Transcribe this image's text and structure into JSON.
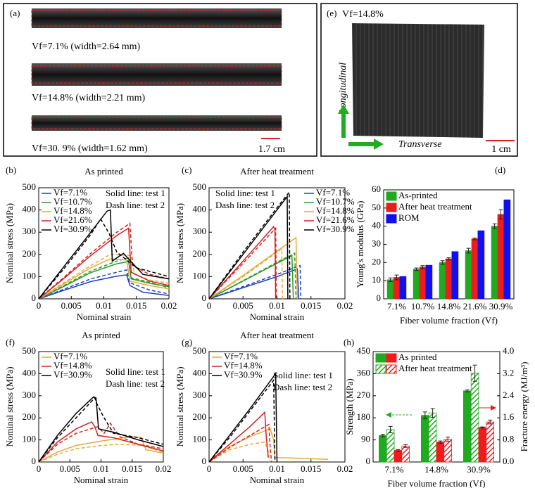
{
  "figure_panels": {
    "a": {
      "label": "(a)",
      "captions": [
        "Vf=7.1% (width=2.64 mm)",
        "Vf=14.8% (width=2.21 mm)",
        "Vf=30. 9% (width=1.62 mm)"
      ],
      "scale_bar": "1.7 cm"
    },
    "e": {
      "label": "(e)",
      "caption": "Vf=14.8%",
      "longitudinal": "Longitudinal",
      "transverse": "Transverse",
      "scale_bar": "1 cm"
    }
  },
  "chart_data": [
    {
      "type": "line",
      "panel": "(b)",
      "title": "As printed",
      "xlabel": "Nominal strain",
      "ylabel": "Nominal stress (MPa)",
      "xlim": [
        0,
        0.02
      ],
      "ylim": [
        0,
        500
      ],
      "xticks": [
        0,
        0.005,
        0.01,
        0.015,
        0.02
      ],
      "yticks": [
        0,
        100,
        200,
        300,
        400,
        500
      ],
      "legend": "upper left",
      "annotations": [
        "Solid line: test 1",
        "Dash line: test 2"
      ],
      "series": [
        {
          "name": "Vf=7.1%",
          "color": "#1a3fbf",
          "x": [
            0,
            0.004,
            0.008,
            0.012,
            0.0135,
            0.014,
            0.016,
            0.02
          ],
          "values": [
            0,
            40,
            78,
            102,
            108,
            60,
            30,
            15
          ]
        },
        {
          "color": "#1a3fbf",
          "dash": true,
          "x": [
            0,
            0.004,
            0.008,
            0.012,
            0.0135,
            0.014,
            0.017,
            0.02
          ],
          "values": [
            0,
            45,
            90,
            120,
            130,
            72,
            40,
            22
          ]
        },
        {
          "name": "Vf=10.7%",
          "color": "#2a9a2a",
          "x": [
            0,
            0.004,
            0.008,
            0.012,
            0.0138,
            0.0142,
            0.017,
            0.02
          ],
          "values": [
            0,
            58,
            118,
            158,
            168,
            90,
            70,
            55
          ]
        },
        {
          "color": "#2a9a2a",
          "dash": true,
          "x": [
            0,
            0.004,
            0.008,
            0.012,
            0.0138,
            0.0142,
            0.017,
            0.02
          ],
          "values": [
            0,
            62,
            125,
            170,
            185,
            95,
            75,
            50
          ]
        },
        {
          "name": "Vf=14.8%",
          "color": "#e8a93a",
          "x": [
            0,
            0.004,
            0.008,
            0.011,
            0.0135,
            0.014,
            0.017,
            0.02
          ],
          "values": [
            0,
            70,
            140,
            180,
            175,
            80,
            60,
            45
          ]
        },
        {
          "color": "#e8a93a",
          "dash": true,
          "x": [
            0,
            0.004,
            0.008,
            0.011,
            0.0143,
            0.0147,
            0.017,
            0.02
          ],
          "values": [
            0,
            75,
            150,
            200,
            195,
            110,
            85,
            70
          ]
        },
        {
          "name": "Vf=21.6%",
          "color": "#d42020",
          "x": [
            0,
            0.004,
            0.008,
            0.012,
            0.0138,
            0.0142,
            0.017,
            0.02
          ],
          "values": [
            0,
            95,
            195,
            285,
            318,
            120,
            80,
            60
          ]
        },
        {
          "color": "#d42020",
          "dash": true,
          "x": [
            0,
            0.004,
            0.008,
            0.012,
            0.014,
            0.0144,
            0.017,
            0.02
          ],
          "values": [
            0,
            100,
            205,
            300,
            340,
            150,
            110,
            90
          ]
        },
        {
          "name": "Vf=30.9%",
          "color": "#000000",
          "x": [
            0,
            0.004,
            0.008,
            0.0105,
            0.011,
            0.0113,
            0.013,
            0.016,
            0.02
          ],
          "values": [
            0,
            150,
            300,
            395,
            400,
            170,
            205,
            110,
            90
          ]
        },
        {
          "color": "#000000",
          "dash": true,
          "x": [
            0,
            0.004,
            0.008,
            0.0095,
            0.0108,
            0.012,
            0.015,
            0.02
          ],
          "values": [
            0,
            140,
            290,
            360,
            295,
            210,
            140,
            100
          ]
        }
      ]
    },
    {
      "type": "line",
      "panel": "(c)",
      "title": "After heat treatment",
      "xlabel": "Nominal strain",
      "ylabel": "Nominal stress (MPa)",
      "xlim": [
        0,
        0.02
      ],
      "ylim": [
        0,
        500
      ],
      "xticks": [
        0,
        0.005,
        0.01,
        0.015,
        0.02
      ],
      "yticks": [
        0,
        100,
        200,
        300,
        400,
        500
      ],
      "legend": "upper right",
      "annotations": [
        "Solid line: test 1",
        "Dash line: test 2"
      ],
      "series": [
        {
          "name": "Vf=7.1%",
          "color": "#1a3fbf",
          "x": [
            0,
            0.005,
            0.01,
            0.013,
            0.0132
          ],
          "values": [
            0,
            50,
            100,
            135,
            0
          ]
        },
        {
          "color": "#1a3fbf",
          "dash": true,
          "x": [
            0,
            0.005,
            0.01,
            0.0134,
            0.0135
          ],
          "values": [
            0,
            55,
            110,
            150,
            0
          ]
        },
        {
          "name": "Vf=10.7%",
          "color": "#2a9a2a",
          "x": [
            0,
            0.005,
            0.01,
            0.0122,
            0.0124
          ],
          "values": [
            0,
            80,
            160,
            195,
            0
          ]
        },
        {
          "color": "#2a9a2a",
          "dash": true,
          "x": [
            0,
            0.005,
            0.01,
            0.0126,
            0.0128
          ],
          "values": [
            0,
            82,
            165,
            205,
            0
          ]
        },
        {
          "name": "Vf=14.8%",
          "color": "#e8a93a",
          "x": [
            0,
            0.005,
            0.01,
            0.0128,
            0.013
          ],
          "values": [
            0,
            105,
            215,
            275,
            0
          ]
        },
        {
          "color": "#e8a93a",
          "dash": true,
          "x": [
            0,
            0.005,
            0.0107,
            0.0108
          ],
          "values": [
            0,
            100,
            225,
            0
          ]
        },
        {
          "name": "Vf=21.6%",
          "color": "#d42020",
          "x": [
            0,
            0.005,
            0.0095,
            0.0097,
            0.0098
          ],
          "values": [
            0,
            170,
            325,
            310,
            0
          ]
        },
        {
          "color": "#d42020",
          "dash": true,
          "x": [
            0,
            0.005,
            0.0098,
            0.0099
          ],
          "values": [
            0,
            160,
            318,
            0
          ]
        },
        {
          "name": "Vf=30.9%",
          "color": "#000000",
          "x": [
            0,
            0.005,
            0.01,
            0.0115,
            0.0116
          ],
          "values": [
            0,
            200,
            400,
            460,
            0
          ]
        },
        {
          "color": "#000000",
          "dash": true,
          "x": [
            0,
            0.005,
            0.01,
            0.0118,
            0.0119
          ],
          "values": [
            0,
            210,
            410,
            480,
            0
          ]
        }
      ]
    },
    {
      "type": "bar",
      "panel": "(d)",
      "xlabel": "Fiber volume fraction (Vf)",
      "ylabel": "Young's modulus (GPa)",
      "categories": [
        "7.1%",
        "10.7%",
        "14.8%",
        "21.6%",
        "30.9%"
      ],
      "ylim": [
        0,
        60
      ],
      "yticks": [
        0,
        10,
        20,
        30,
        40,
        50,
        60
      ],
      "legend": "upper left",
      "series": [
        {
          "name": "As-printed",
          "color": "#1faa1f",
          "values": [
            10.5,
            16.3,
            20,
            26.5,
            40
          ],
          "errors": [
            1,
            0.7,
            1,
            1.3,
            1.3
          ]
        },
        {
          "name": "After heat treatment",
          "color": "#ee1c1c",
          "values": [
            11.8,
            17.5,
            22,
            33,
            46.5
          ],
          "errors": [
            1.3,
            0.8,
            0.6,
            0.5,
            2.5
          ]
        },
        {
          "name": "ROM",
          "color": "#1010ee",
          "values": [
            12.3,
            18.5,
            26,
            37.5,
            54.5
          ]
        }
      ]
    },
    {
      "type": "line",
      "panel": "(f)",
      "title": "As printed",
      "xlabel": "Nominal strain",
      "ylabel": "Nominal stress (MPa)",
      "xlim": [
        0,
        0.02
      ],
      "ylim": [
        0,
        500
      ],
      "xticks": [
        0,
        0.005,
        0.01,
        0.015,
        0.02
      ],
      "yticks": [
        0,
        100,
        200,
        300,
        400,
        500
      ],
      "legend": "upper left",
      "annotations": [
        "Solid line: test 1",
        "Dash line: test 2"
      ],
      "series": [
        {
          "name": "Vf=7.1%",
          "color": "#e8a93a",
          "x": [
            0,
            0.003,
            0.006,
            0.01,
            0.015,
            0.0165,
            0.0172,
            0.02
          ],
          "values": [
            0,
            45,
            75,
            95,
            115,
            110,
            55,
            40
          ]
        },
        {
          "color": "#e8a93a",
          "dash": true,
          "x": [
            0,
            0.003,
            0.006,
            0.01,
            0.013,
            0.0165,
            0.02
          ],
          "values": [
            0,
            35,
            60,
            75,
            80,
            75,
            45
          ]
        },
        {
          "name": "Vf=14.8%",
          "color": "#d42020",
          "x": [
            0,
            0.003,
            0.006,
            0.0085,
            0.009,
            0.0095,
            0.012,
            0.016,
            0.02
          ],
          "values": [
            0,
            90,
            150,
            182,
            160,
            120,
            110,
            80,
            50
          ]
        },
        {
          "color": "#d42020",
          "dash": true,
          "x": [
            0,
            0.003,
            0.006,
            0.0095,
            0.0105,
            0.0115,
            0.013,
            0.016,
            0.02
          ],
          "values": [
            0,
            80,
            130,
            160,
            130,
            175,
            115,
            80,
            60
          ]
        },
        {
          "name": "Vf=30.9%",
          "color": "#000000",
          "x": [
            0,
            0.003,
            0.006,
            0.0088,
            0.0092,
            0.0096,
            0.012,
            0.016,
            0.02
          ],
          "values": [
            0,
            120,
            220,
            295,
            290,
            150,
            135,
            100,
            70
          ]
        },
        {
          "color": "#000000",
          "dash": true,
          "x": [
            0,
            0.003,
            0.006,
            0.009,
            0.0094,
            0.0105,
            0.012,
            0.016,
            0.02
          ],
          "values": [
            0,
            110,
            200,
            290,
            260,
            200,
            130,
            110,
            80
          ]
        }
      ]
    },
    {
      "type": "line",
      "panel": "(g)",
      "title": "After heat treatment",
      "xlabel": "Nominal strain",
      "ylabel": "Nominal stress (MPa)",
      "xlim": [
        0,
        0.02
      ],
      "ylim": [
        0,
        500
      ],
      "xticks": [
        0,
        0.005,
        0.01,
        0.015,
        0.02
      ],
      "yticks": [
        0,
        100,
        200,
        300,
        400,
        500
      ],
      "legend": "upper left",
      "annotations": [
        "Solid line: test 1",
        "Dash line: test 2"
      ],
      "series": [
        {
          "name": "Vf=7.1%",
          "color": "#e8a93a",
          "x": [
            0,
            0.003,
            0.006,
            0.009,
            0.0095,
            0.0097,
            0.012,
            0.0175
          ],
          "values": [
            0,
            70,
            115,
            150,
            100,
            20,
            18,
            12
          ]
        },
        {
          "color": "#e8a93a",
          "dash": true,
          "x": [
            0,
            0.003,
            0.006,
            0.0082,
            0.0087,
            0.0089
          ],
          "values": [
            0,
            55,
            80,
            90,
            50,
            0
          ]
        },
        {
          "name": "Vf=14.8%",
          "color": "#d42020",
          "x": [
            0,
            0.003,
            0.006,
            0.0082,
            0.0084,
            0.0087
          ],
          "values": [
            0,
            80,
            160,
            225,
            120,
            20
          ]
        },
        {
          "color": "#d42020",
          "dash": true,
          "x": [
            0,
            0.003,
            0.006,
            0.0088,
            0.009,
            0.0092
          ],
          "values": [
            0,
            65,
            120,
            170,
            60,
            0
          ]
        },
        {
          "name": "Vf=30.9%",
          "color": "#000000",
          "x": [
            0,
            0.003,
            0.006,
            0.0098,
            0.01
          ],
          "values": [
            0,
            120,
            240,
            400,
            0
          ]
        },
        {
          "color": "#000000",
          "dash": true,
          "x": [
            0,
            0.003,
            0.006,
            0.0095,
            0.0097
          ],
          "values": [
            0,
            110,
            230,
            370,
            0
          ]
        }
      ]
    },
    {
      "type": "bar",
      "panel": "(h)",
      "xlabel": "Fiber volume fraction (Vf)",
      "ylabel": "Strength (MPa)",
      "y2label": "Fracture energy (MJ/m³)",
      "ylabel_color": "#1faa1f",
      "y2label_color": "#ee1c1c",
      "categories": [
        "7.1%",
        "14.8%",
        "30.9%"
      ],
      "ylim": [
        0,
        450
      ],
      "yticks": [
        0,
        90,
        180,
        270,
        360,
        450
      ],
      "y2lim": [
        0,
        4
      ],
      "y2ticks": [
        {
          "value": 0,
          "label": "0.0"
        },
        0.8,
        1.6,
        2.4,
        3.2,
        {
          "value": 4,
          "label": "4.0"
        }
      ],
      "legend": "upper left",
      "series": [
        {
          "name": "As printed",
          "color": "#1faa1f",
          "values": [
            108,
            190,
            290
          ],
          "errors": [
            5,
            14,
            4
          ]
        },
        {
          "name": "After heat treatment",
          "color": "#1faa1f",
          "hatch": true,
          "values": [
            132,
            200,
            362
          ],
          "errors": [
            13,
            18,
            33
          ]
        },
        {
          "color": "#ee1c1c",
          "axis": "y2",
          "values": [
            0.42,
            0.72,
            1.25
          ],
          "errors": [
            0.03,
            0.04,
            0.02
          ]
        },
        {
          "color": "#ee1c1c",
          "axis": "y2",
          "hatch": true,
          "values": [
            0.58,
            0.82,
            1.45
          ],
          "errors": [
            0.05,
            0.08,
            0.07
          ]
        }
      ]
    }
  ]
}
